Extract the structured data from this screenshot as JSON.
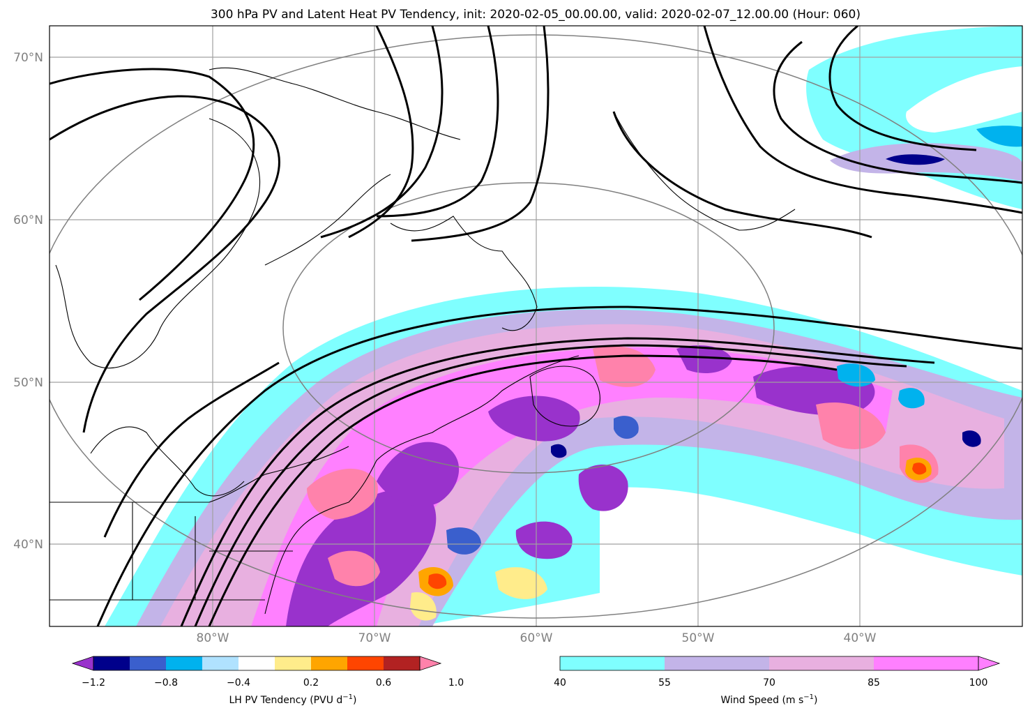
{
  "figure": {
    "title": "300 hPa PV and Latent Heat PV Tendency, init: 2020-02-05_00.00.00, valid: 2020-02-07_12.00.00 (Hour: 060)"
  },
  "map": {
    "lat_labels": [
      "70°N",
      "60°N",
      "50°N",
      "40°N"
    ],
    "lon_labels": [
      "80°W",
      "70°W",
      "60°W",
      "50°W",
      "40°W"
    ],
    "gridline_color": "#a0a0a0",
    "contour_color": "#000000"
  },
  "colorbar_lh": {
    "label_main": "LH PV Tendency (PVU d",
    "label_sup": "−1",
    "label_end": ")",
    "ticks": [
      "−1.2",
      "−0.8",
      "−0.4",
      "0.2",
      "0.6",
      "1.0"
    ],
    "colors": [
      "#9932cc",
      "#00008b",
      "#3a5fcd",
      "#00b2ee",
      "#b0e2ff",
      "#ffffff",
      "#ffec8b",
      "#ffa500",
      "#ff4500",
      "#b22222",
      "#ff82ab"
    ],
    "extend": "both"
  },
  "colorbar_wind": {
    "label_main": "Wind Speed (m s",
    "label_sup": "−1",
    "label_end": ")",
    "ticks": [
      "40",
      "55",
      "70",
      "85",
      "100"
    ],
    "colors": [
      "#7fffff",
      "#c3b4e8",
      "#e8b0e0",
      "#ff80ff"
    ],
    "extend": "max"
  }
}
